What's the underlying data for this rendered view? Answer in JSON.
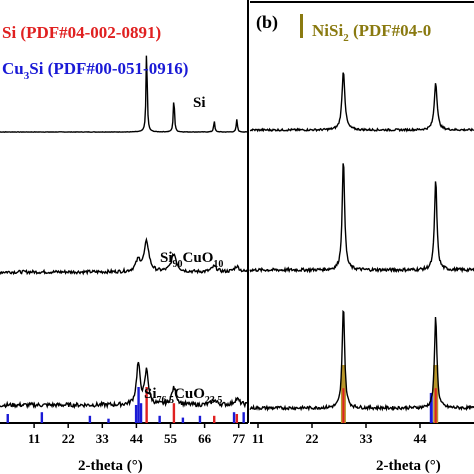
{
  "chart_data": [
    {
      "panel": "left",
      "type": "line",
      "xlabel": "2-theta (°)",
      "xlim": [
        0,
        80
      ],
      "x_ticks": [
        11,
        22,
        33,
        44,
        55,
        66,
        77
      ],
      "legend": [
        {
          "label": "Si (PDF#04-002-0891)",
          "color": "#e02020"
        },
        {
          "label_parts": [
            "Cu",
            "3",
            "Si (PDF#00-051-0916)"
          ],
          "color": "#1a1ad6"
        }
      ],
      "series": [
        {
          "name": "Si",
          "name_parts": [
            "Si",
            "",
            "",
            ""
          ],
          "peaks": [
            {
              "x": 47.3,
              "h": 1.0,
              "w": 0.22
            },
            {
              "x": 56.1,
              "h": 0.42,
              "w": 0.22
            },
            {
              "x": 69.1,
              "h": 0.13,
              "w": 0.22
            },
            {
              "x": 76.4,
              "h": 0.15,
              "w": 0.22
            }
          ],
          "noise": 0.005
        },
        {
          "name": "Si90CuO10",
          "name_parts": [
            "Si",
            "90",
            "CuO",
            "10"
          ],
          "peaks": [
            {
              "x": 47.3,
              "h": 0.27,
              "w": 0.9
            },
            {
              "x": 44.6,
              "h": 0.1,
              "w": 1.0
            },
            {
              "x": 56.1,
              "h": 0.16,
              "w": 1.0
            },
            {
              "x": 69.1,
              "h": 0.05,
              "w": 1.0
            },
            {
              "x": 76.4,
              "h": 0.05,
              "w": 1.0
            }
          ],
          "noise": 0.03
        },
        {
          "name": "Si76.5CuO23.5",
          "name_parts": [
            "Si",
            "76.5",
            "CuO",
            "23.5"
          ],
          "peaks": [
            {
              "x": 44.6,
              "h": 0.34,
              "w": 0.7
            },
            {
              "x": 47.3,
              "h": 0.28,
              "w": 0.7
            },
            {
              "x": 56.1,
              "h": 0.14,
              "w": 0.9
            },
            {
              "x": 69.1,
              "h": 0.04,
              "w": 1.0
            },
            {
              "x": 76.4,
              "h": 0.05,
              "w": 1.0
            }
          ],
          "noise": 0.035
        }
      ],
      "reference_si": [
        {
          "x": 47.3,
          "h": 1.0
        },
        {
          "x": 56.1,
          "h": 0.55
        },
        {
          "x": 69.1,
          "h": 0.2
        },
        {
          "x": 76.4,
          "h": 0.25
        }
      ],
      "reference_cu3si": [
        {
          "x": 2.5,
          "h": 0.25
        },
        {
          "x": 13.5,
          "h": 0.3
        },
        {
          "x": 29.0,
          "h": 0.2
        },
        {
          "x": 35.0,
          "h": 0.12
        },
        {
          "x": 43.9,
          "h": 0.5
        },
        {
          "x": 44.7,
          "h": 1.0
        },
        {
          "x": 45.5,
          "h": 0.55
        },
        {
          "x": 51.5,
          "h": 0.2
        },
        {
          "x": 59.0,
          "h": 0.15
        },
        {
          "x": 64.5,
          "h": 0.2
        },
        {
          "x": 75.5,
          "h": 0.3
        },
        {
          "x": 78.6,
          "h": 0.3
        }
      ]
    },
    {
      "panel": "right",
      "panel_label": "(b)",
      "type": "line",
      "xlabel": "2-theta (°)",
      "xlim": [
        11,
        48
      ],
      "x_ticks": [
        11,
        22,
        33,
        44
      ],
      "legend": [
        {
          "label_parts": [
            "NiSi",
            "2",
            " (PDF#04-0"
          ],
          "color": "#8a7a10"
        }
      ],
      "series": [
        {
          "name": "top",
          "peaks": [
            {
              "x": 28.4,
              "h": 0.72,
              "w": 0.35
            },
            {
              "x": 47.2,
              "h": 0.58,
              "w": 0.35
            }
          ],
          "noise": 0.025
        },
        {
          "name": "middle",
          "peaks": [
            {
              "x": 28.4,
              "h": 0.88,
              "w": 0.3
            },
            {
              "x": 47.2,
              "h": 0.72,
              "w": 0.3
            }
          ],
          "noise": 0.025
        },
        {
          "name": "bottom",
          "peaks": [
            {
              "x": 28.4,
              "h": 0.95,
              "w": 0.3
            },
            {
              "x": 47.2,
              "h": 0.85,
              "w": 0.3
            }
          ],
          "noise": 0.03
        }
      ],
      "reference_nisi2": [
        {
          "x": 28.4,
          "h": 1.0
        },
        {
          "x": 47.2,
          "h": 1.0
        }
      ],
      "reference_cu3si": [
        {
          "x": 46.3,
          "h": 0.5
        }
      ],
      "reference_si": [
        {
          "x": 28.4,
          "h": 0.6
        },
        {
          "x": 47.2,
          "h": 0.6
        }
      ]
    }
  ]
}
